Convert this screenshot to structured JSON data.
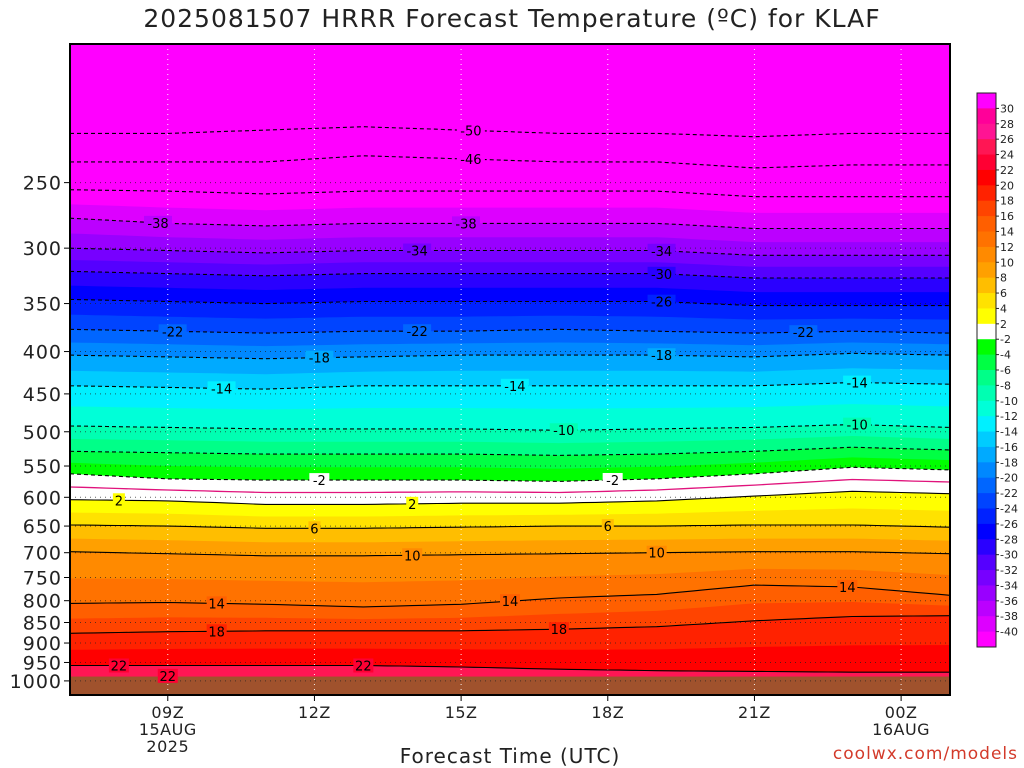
{
  "title": "2025081507 HRRR Forecast Temperature (ºC) for KLAF",
  "credit": "coolwx.com/models",
  "chart_data": {
    "type": "heatmap",
    "title": "2025081507 HRRR Forecast Temperature (ºC) for KLAF",
    "xlabel": "Forecast Time (UTC)",
    "ylabel": "",
    "x_range_hours_utc": [
      7.0,
      25.0
    ],
    "y_range_hpa": [
      1040,
      170
    ],
    "y_scale": "log",
    "x_ticks": [
      {
        "hour": 9,
        "lines": [
          "09Z",
          "15AUG",
          "2025"
        ]
      },
      {
        "hour": 12,
        "lines": [
          "12Z"
        ]
      },
      {
        "hour": 15,
        "lines": [
          "15Z"
        ]
      },
      {
        "hour": 18,
        "lines": [
          "18Z"
        ]
      },
      {
        "hour": 21,
        "lines": [
          "21Z"
        ]
      },
      {
        "hour": 24,
        "lines": [
          "00Z",
          "16AUG"
        ]
      }
    ],
    "y_ticks": [
      250,
      300,
      350,
      400,
      450,
      500,
      550,
      600,
      650,
      700,
      750,
      800,
      850,
      900,
      950,
      1000
    ],
    "ground_pressure_hpa": 988,
    "ground_color": "#a0522d",
    "grid": "dotted",
    "times": [
      7,
      9,
      11,
      13,
      15,
      17,
      19,
      21,
      23,
      25
    ],
    "isotherm_levels_hpa": [
      {
        "t": 22,
        "p": [
          958,
          958,
          958,
          958,
          962,
          968,
          972,
          974,
          976,
          976
        ]
      },
      {
        "t": 18,
        "p": [
          876,
          872,
          870,
          870,
          870,
          866,
          860,
          846,
          836,
          834
        ]
      },
      {
        "t": 14,
        "p": [
          806,
          804,
          808,
          814,
          808,
          794,
          786,
          766,
          770,
          788
        ]
      },
      {
        "t": 10,
        "p": [
          698,
          702,
          706,
          706,
          704,
          702,
          700,
          698,
          698,
          702
        ]
      },
      {
        "t": 6,
        "p": [
          648,
          650,
          654,
          654,
          652,
          650,
          650,
          648,
          648,
          652
        ]
      },
      {
        "t": 2,
        "p": [
          604,
          606,
          612,
          612,
          610,
          610,
          606,
          598,
          590,
          594
        ]
      },
      {
        "t": -2,
        "p": [
          562,
          570,
          572,
          572,
          572,
          574,
          570,
          562,
          552,
          556
        ]
      },
      {
        "t": -6,
        "p": [
          528,
          530,
          532,
          532,
          532,
          534,
          532,
          528,
          522,
          526
        ]
      },
      {
        "t": -10,
        "p": [
          492,
          494,
          496,
          496,
          496,
          498,
          496,
          494,
          490,
          494
        ]
      },
      {
        "t": -14,
        "p": [
          440,
          442,
          444,
          440,
          440,
          440,
          440,
          440,
          436,
          438
        ]
      },
      {
        "t": -18,
        "p": [
          404,
          406,
          408,
          406,
          404,
          404,
          404,
          406,
          402,
          404
        ]
      },
      {
        "t": -22,
        "p": [
          376,
          378,
          380,
          378,
          378,
          376,
          378,
          380,
          378,
          380
        ]
      },
      {
        "t": -26,
        "p": [
          346,
          348,
          350,
          348,
          348,
          348,
          348,
          352,
          352,
          352
        ]
      },
      {
        "t": -30,
        "p": [
          320,
          322,
          324,
          322,
          322,
          322,
          322,
          326,
          326,
          326
        ]
      },
      {
        "t": -34,
        "p": [
          300,
          302,
          304,
          302,
          302,
          302,
          302,
          306,
          306,
          306
        ]
      },
      {
        "t": -38,
        "p": [
          276,
          280,
          282,
          280,
          280,
          280,
          280,
          284,
          284,
          284
        ]
      },
      {
        "t": -42,
        "p": [
          255,
          256,
          258,
          256,
          256,
          256,
          256,
          260,
          260,
          260
        ]
      },
      {
        "t": -46,
        "p": [
          236,
          236,
          236,
          232,
          234,
          236,
          236,
          240,
          238,
          238
        ]
      },
      {
        "t": -50,
        "p": [
          218,
          218,
          216,
          214,
          216,
          218,
          218,
          220,
          218,
          218
        ]
      }
    ],
    "contour_labels": [
      {
        "t": -50,
        "hour": 15.2
      },
      {
        "t": -46,
        "hour": 15.2
      },
      {
        "t": -38,
        "hour": 8.8
      },
      {
        "t": -38,
        "hour": 15.1
      },
      {
        "t": -34,
        "hour": 14.1
      },
      {
        "t": -34,
        "hour": 19.1
      },
      {
        "t": -30,
        "hour": 19.1
      },
      {
        "t": -26,
        "hour": 19.1
      },
      {
        "t": -22,
        "hour": 9.1
      },
      {
        "t": -22,
        "hour": 14.1
      },
      {
        "t": -22,
        "hour": 22.0
      },
      {
        "t": -18,
        "hour": 12.1
      },
      {
        "t": -18,
        "hour": 19.1
      },
      {
        "t": -14,
        "hour": 10.1
      },
      {
        "t": -14,
        "hour": 16.1
      },
      {
        "t": -14,
        "hour": 23.1
      },
      {
        "t": -10,
        "hour": 17.1
      },
      {
        "t": -10,
        "hour": 23.1
      },
      {
        "t": -2,
        "hour": 12.1
      },
      {
        "t": -2,
        "hour": 18.1
      },
      {
        "t": 2,
        "hour": 8.0
      },
      {
        "t": 2,
        "hour": 14.0
      },
      {
        "t": 6,
        "hour": 12.0
      },
      {
        "t": 6,
        "hour": 18.0
      },
      {
        "t": 10,
        "hour": 14.0
      },
      {
        "t": 10,
        "hour": 19.0
      },
      {
        "t": 14,
        "hour": 10.0
      },
      {
        "t": 14,
        "hour": 16.0
      },
      {
        "t": 14,
        "hour": 22.9
      },
      {
        "t": 18,
        "hour": 10.0
      },
      {
        "t": 18,
        "hour": 17.0
      },
      {
        "t": 22,
        "hour": 8.0
      },
      {
        "t": 22,
        "hour": 13.0
      },
      {
        "t": 22,
        "hour": 9.0,
        "note": "surface"
      }
    ],
    "colorbar": {
      "labels": [
        30,
        28,
        26,
        24,
        22,
        20,
        18,
        16,
        14,
        12,
        10,
        8,
        6,
        4,
        2,
        -2,
        -4,
        -6,
        -8,
        -10,
        -12,
        -14,
        -16,
        -18,
        -20,
        -22,
        -24,
        -26,
        -28,
        -30,
        -32,
        -34,
        -36,
        -38,
        -40
      ],
      "colors": [
        "#ff00ff",
        "#ff0099",
        "#ff1493",
        "#ff1654",
        "#ff0033",
        "#ff0000",
        "#ff2200",
        "#ff4400",
        "#ff5f00",
        "#ff7200",
        "#ff8a00",
        "#ffa000",
        "#ffbe00",
        "#ffe200",
        "#ffff00",
        "#ffffff",
        "#00ff00",
        "#00ff44",
        "#00ff88",
        "#00ffb2",
        "#00ffd8",
        "#00f0ff",
        "#00ccff",
        "#00aaff",
        "#0088ff",
        "#0066ff",
        "#0044ff",
        "#0022ff",
        "#0000ff",
        "#2a00ff",
        "#5500ff",
        "#7700ff",
        "#9900ff",
        "#bb00ff",
        "#dd00ff",
        "#ff00ff"
      ]
    }
  }
}
